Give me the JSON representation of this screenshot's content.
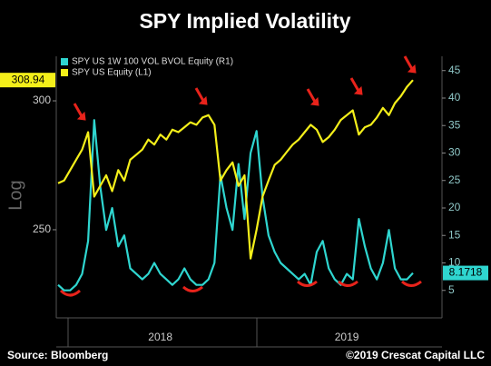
{
  "chart_data": {
    "type": "line",
    "title": "SPY Implied Volatility",
    "ylabel": "Log",
    "yscale": "log",
    "categories": [
      null,
      null,
      null,
      null,
      null,
      null,
      null,
      null,
      null,
      null,
      null,
      null,
      null,
      null,
      null,
      null,
      null,
      "2018",
      null,
      null,
      null,
      null,
      null,
      null,
      null,
      null,
      null,
      null,
      null,
      null,
      null,
      null,
      null,
      null,
      null,
      null,
      null,
      null,
      null,
      null,
      null,
      null,
      null,
      null,
      null,
      null,
      null,
      null,
      "2019",
      null,
      null,
      null,
      null,
      null,
      null,
      null,
      null,
      null,
      null,
      null
    ],
    "series": [
      {
        "name": "SPY US 1W 100 VOL BVOL Equity (R1)",
        "color": "#2fd6d0",
        "axis": "y2",
        "values": [
          6,
          5,
          5,
          6,
          8,
          14,
          36,
          24,
          16,
          20,
          13,
          15,
          9,
          8,
          7,
          8,
          10,
          8,
          7,
          6,
          7,
          9,
          7,
          6,
          6,
          7,
          10,
          26,
          20,
          16,
          28,
          18,
          30,
          34,
          22,
          15,
          12,
          10,
          9,
          8,
          7,
          8,
          6,
          12,
          14,
          9,
          7,
          6,
          8,
          7,
          18,
          13,
          9,
          7,
          10,
          16,
          9,
          7,
          7,
          8.1718
        ]
      },
      {
        "name": "SPY US Equity (L1)",
        "color": "#f4ef1a",
        "axis": "y",
        "values": [
          267,
          268,
          272,
          276,
          280,
          287,
          262,
          266,
          270,
          264,
          272,
          268,
          276,
          278,
          280,
          284,
          282,
          286,
          284,
          288,
          287,
          289,
          291,
          290,
          293,
          294,
          290,
          268,
          272,
          275,
          266,
          270,
          240,
          250,
          262,
          268,
          274,
          276,
          279,
          282,
          284,
          287,
          290,
          288,
          283,
          285,
          288,
          292,
          294,
          296,
          286,
          289,
          290,
          293,
          297,
          294,
          299,
          302,
          306,
          308.94
        ]
      }
    ],
    "ylim": [
      220.7,
      319.5
    ],
    "yticks": [
      250,
      300
    ],
    "y2lim": [
      0,
      47.6
    ],
    "y2ticks": [
      5,
      10,
      15,
      20,
      25,
      30,
      35,
      40,
      45
    ],
    "source": "Source: Bloomberg",
    "copyright": "©2019 Crescat Capital LLC"
  }
}
